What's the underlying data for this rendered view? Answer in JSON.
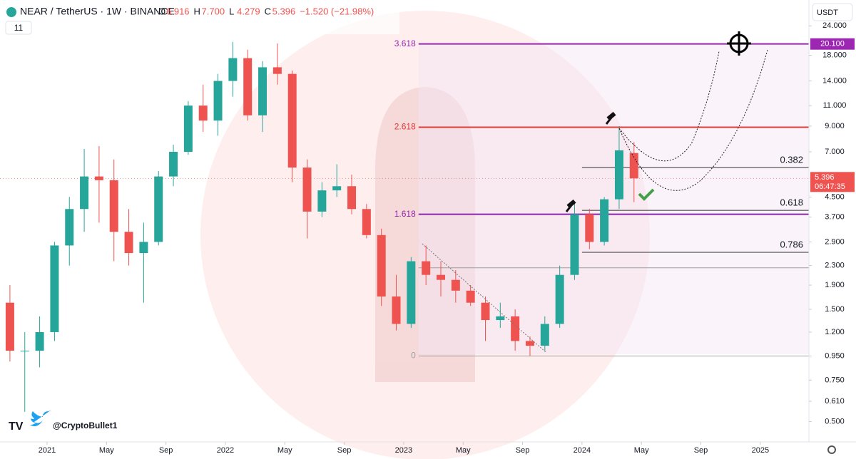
{
  "header": {
    "symbol": "NEAR / TetherUS · 1W · BINANCE",
    "ohlc": [
      {
        "key": "O",
        "value": "6.916"
      },
      {
        "key": "H",
        "value": "7.700"
      },
      {
        "key": "L",
        "value": "4.279"
      },
      {
        "key": "C",
        "value": "5.396"
      }
    ],
    "change": "−1.520 (−21.98%)",
    "indicator_count": "11",
    "currency": "USDT",
    "author": "@CryptoBullet1"
  },
  "chart_data": {
    "type": "candlestick",
    "log_scale": true,
    "up_color": "#26a69a",
    "down_color": "#ef5350",
    "x": [
      "2020-10",
      "2020-11",
      "2020-12",
      "2021-01",
      "2021-02",
      "2021-03",
      "2021-04",
      "2021-05",
      "2021-06",
      "2021-07",
      "2021-08",
      "2021-09",
      "2021-10",
      "2021-11",
      "2021-12",
      "2022-01",
      "2022-02",
      "2022-03",
      "2022-04",
      "2022-05",
      "2022-06",
      "2022-07",
      "2022-08",
      "2022-09",
      "2022-10",
      "2022-11",
      "2022-12",
      "2023-01",
      "2023-02",
      "2023-03",
      "2023-04",
      "2023-05",
      "2023-06",
      "2023-07",
      "2023-08",
      "2023-09",
      "2023-10",
      "2023-11",
      "2023-12",
      "2024-01",
      "2024-02",
      "2024-03",
      "2024-04"
    ],
    "open": [
      1.6,
      1.0,
      1.0,
      1.2,
      2.8,
      4.0,
      5.5,
      5.3,
      3.2,
      2.6,
      2.9,
      5.5,
      7.0,
      11.0,
      9.5,
      14.0,
      17.5,
      10.0,
      16.0,
      15.0,
      6.0,
      3.9,
      4.8,
      5.0,
      4.0,
      3.1,
      1.7,
      1.3,
      2.4,
      2.1,
      2.0,
      1.8,
      1.6,
      1.35,
      1.4,
      1.1,
      1.05,
      1.3,
      2.1,
      3.8,
      2.9,
      4.4,
      6.916
    ],
    "high": [
      1.9,
      1.2,
      1.4,
      2.9,
      4.5,
      7.2,
      7.4,
      6.5,
      4.0,
      3.5,
      5.8,
      7.5,
      11.5,
      13.5,
      15.0,
      20.5,
      19.0,
      17.0,
      20.2,
      15.5,
      6.5,
      5.2,
      6.2,
      5.6,
      4.2,
      3.3,
      2.1,
      2.5,
      2.8,
      2.4,
      2.2,
      1.9,
      1.7,
      1.6,
      1.5,
      1.15,
      1.4,
      2.3,
      4.3,
      4.0,
      4.5,
      9.0,
      7.7
    ],
    "low": [
      0.9,
      0.55,
      0.85,
      1.1,
      2.3,
      3.2,
      3.5,
      2.4,
      2.3,
      1.6,
      2.8,
      5.0,
      6.8,
      8.5,
      8.2,
      12.0,
      9.5,
      8.5,
      13.5,
      5.2,
      3.0,
      3.7,
      4.5,
      3.8,
      3.0,
      1.55,
      1.22,
      1.25,
      1.9,
      1.7,
      1.6,
      1.55,
      1.1,
      1.25,
      1.0,
      0.95,
      1.0,
      1.25,
      2.0,
      2.7,
      2.8,
      4.0,
      4.279
    ],
    "close": [
      1.0,
      1.0,
      1.2,
      2.8,
      4.0,
      5.5,
      5.3,
      3.2,
      2.6,
      2.9,
      5.5,
      7.0,
      11.0,
      9.5,
      14.0,
      17.5,
      10.0,
      16.0,
      15.0,
      6.0,
      3.9,
      4.8,
      5.0,
      4.0,
      3.1,
      1.7,
      1.3,
      2.4,
      2.1,
      2.0,
      1.8,
      1.6,
      1.35,
      1.4,
      1.1,
      1.05,
      1.3,
      2.1,
      3.8,
      2.9,
      4.4,
      7.1,
      5.396
    ],
    "xticks": [
      {
        "value": "2021-01",
        "label": "2021"
      },
      {
        "value": "2021-05",
        "label": "May"
      },
      {
        "value": "2021-09",
        "label": "Sep"
      },
      {
        "value": "2022-01",
        "label": "2022"
      },
      {
        "value": "2022-05",
        "label": "May"
      },
      {
        "value": "2022-09",
        "label": "Sep"
      },
      {
        "value": "2023-01",
        "label": "2023"
      },
      {
        "value": "2023-05",
        "label": "May"
      },
      {
        "value": "2023-09",
        "label": "Sep"
      },
      {
        "value": "2024-01",
        "label": "2024"
      },
      {
        "value": "2024-05",
        "label": "May"
      },
      {
        "value": "2024-09",
        "label": "Sep"
      },
      {
        "value": "2025-01",
        "label": "2025"
      }
    ],
    "ylim": [
      0.41,
      30.9
    ],
    "yticks": [
      {
        "value": 24,
        "label": "24.000"
      },
      {
        "value": 18,
        "label": "18.000"
      },
      {
        "value": 14,
        "label": "14.000"
      },
      {
        "value": 11,
        "label": "11.000"
      },
      {
        "value": 9,
        "label": "9.000"
      },
      {
        "value": 7,
        "label": "7.000"
      },
      {
        "value": 4.5,
        "label": "4.500"
      },
      {
        "value": 3.7,
        "label": "3.700"
      },
      {
        "value": 2.9,
        "label": "2.900"
      },
      {
        "value": 2.3,
        "label": "2.300"
      },
      {
        "value": 1.9,
        "label": "1.900"
      },
      {
        "value": 1.5,
        "label": "1.500"
      },
      {
        "value": 1.2,
        "label": "1.200"
      },
      {
        "value": 0.95,
        "label": "0.950"
      },
      {
        "value": 0.75,
        "label": "0.750"
      },
      {
        "value": 0.61,
        "label": "0.610"
      },
      {
        "value": 0.5,
        "label": "0.500"
      }
    ],
    "extensions": [
      {
        "label": "3.618",
        "value": 20.1,
        "value_label": "20.100",
        "color": "#9c27b0",
        "start": "2023-02"
      },
      {
        "label": "2.618",
        "value": 8.9,
        "color": "#e53935",
        "start": "2023-02"
      },
      {
        "label": "1.618",
        "value": 3.8,
        "color": "#8e24aa",
        "start": "2023-02"
      },
      {
        "label": "0",
        "value": 0.95,
        "color": "#9e9e9e",
        "start": "2023-02"
      }
    ],
    "retracements": [
      {
        "label": "0.382",
        "value": 6.0,
        "start": "2024-01"
      },
      {
        "label": "0.618",
        "value": 3.95,
        "start": "2024-01"
      },
      {
        "label": "0.786",
        "value": 2.62,
        "start": "2024-01"
      },
      {
        "label": null,
        "value": 2.25,
        "start": "2023-02"
      }
    ],
    "last_price": {
      "value": 5.396,
      "label": "5.396",
      "countdown": "06:47:35"
    }
  }
}
